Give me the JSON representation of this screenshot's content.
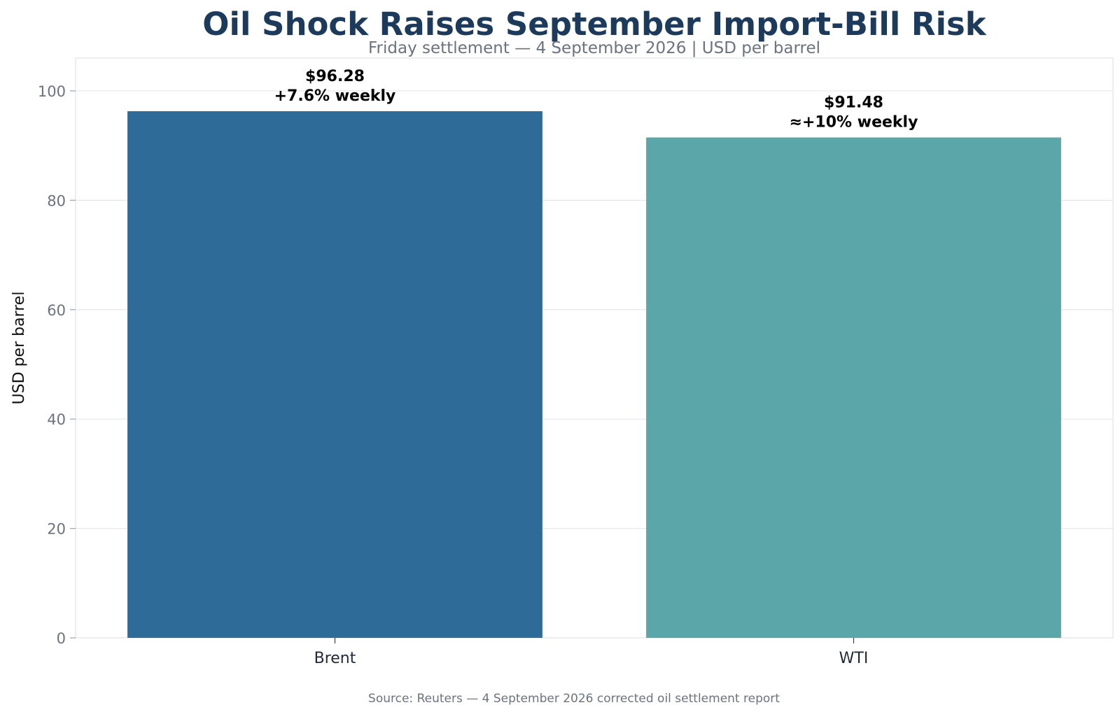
{
  "chart_data": {
    "type": "bar",
    "title": "Oil Shock Raises September Import-Bill Risk",
    "subtitle": "Friday settlement — 4 September 2026 | USD per barrel",
    "xlabel": "",
    "ylabel": "USD per barrel",
    "categories": [
      "Brent",
      "WTI"
    ],
    "values": [
      96.28,
      91.48
    ],
    "bar_labels": [
      {
        "price": "$96.28",
        "change": "+7.6% weekly"
      },
      {
        "price": "$91.48",
        "change": "≈+10% weekly"
      }
    ],
    "colors": [
      "#2f6b98",
      "#5aa6a8"
    ],
    "ylim": [
      0,
      106
    ],
    "yticks": [
      "0",
      "20",
      "40",
      "60",
      "80",
      "100"
    ],
    "ytick_values": [
      0,
      20,
      40,
      60,
      80,
      100
    ],
    "grid": true,
    "legend": "none",
    "source": "Source: Reuters — 4 September 2026 corrected oil settlement report"
  }
}
